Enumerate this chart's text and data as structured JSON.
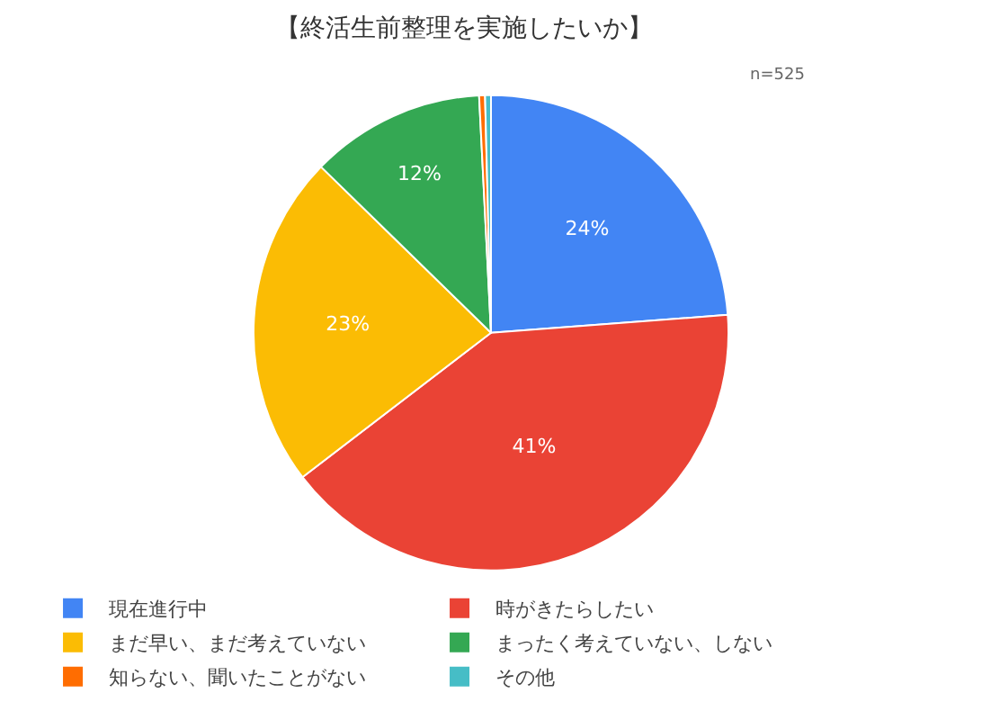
{
  "chart_data": {
    "type": "pie",
    "title": "【終活生前整理を実施したいか】",
    "annotations": [
      "n=525"
    ],
    "categories": [
      "現在進行中",
      "時がきたらしたい",
      "まだ早い、まだ考えていない",
      "まったく考えていない、しない",
      "知らない、聞いたことがない",
      "その他"
    ],
    "values": [
      23.8,
      40.8,
      22.7,
      11.9,
      0.4,
      0.4
    ],
    "value_labels": [
      "24%",
      "41%",
      "23%",
      "12%",
      null,
      null
    ],
    "colors": [
      "#4285f4",
      "#ea4335",
      "#fbbc04",
      "#34a853",
      "#ff6d01",
      "#46bdc6"
    ],
    "legend": "bottom"
  }
}
